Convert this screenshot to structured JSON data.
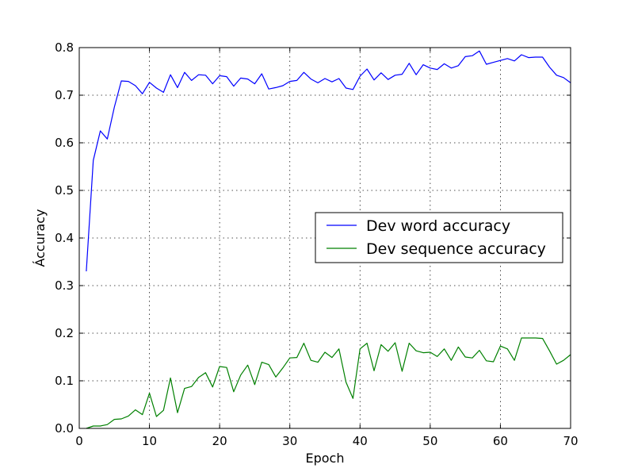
{
  "chart_data": {
    "type": "line",
    "xlabel": "Epoch",
    "ylabel": "Áccuracy",
    "xlim": [
      0,
      70
    ],
    "ylim": [
      0.0,
      0.8
    ],
    "xticks": [
      "0",
      "10",
      "20",
      "30",
      "40",
      "50",
      "60",
      "70"
    ],
    "yticks": [
      "0.0",
      "0.1",
      "0.2",
      "0.3",
      "0.4",
      "0.5",
      "0.6",
      "0.7",
      "0.8"
    ],
    "grid": true,
    "legend_position": "center-right",
    "series": [
      {
        "name": "Dev word accuracy",
        "color": "#0000ff",
        "x": [
          1,
          2,
          3,
          4,
          5,
          6,
          7,
          8,
          9,
          10,
          11,
          12,
          13,
          14,
          15,
          16,
          17,
          18,
          19,
          20,
          21,
          22,
          23,
          24,
          25,
          26,
          27,
          28,
          29,
          30,
          31,
          32,
          33,
          34,
          35,
          36,
          37,
          38,
          39,
          40,
          41,
          42,
          43,
          44,
          45,
          46,
          47,
          48,
          49,
          50,
          51,
          52,
          53,
          54,
          55,
          56,
          57,
          58,
          59,
          60,
          61,
          62,
          63,
          64,
          65,
          66,
          67,
          68,
          69,
          70
        ],
        "values": [
          0.33,
          0.563,
          0.625,
          0.608,
          0.675,
          0.73,
          0.729,
          0.72,
          0.703,
          0.727,
          0.715,
          0.706,
          0.743,
          0.716,
          0.748,
          0.731,
          0.743,
          0.742,
          0.724,
          0.741,
          0.739,
          0.719,
          0.736,
          0.734,
          0.724,
          0.745,
          0.713,
          0.716,
          0.72,
          0.729,
          0.731,
          0.748,
          0.734,
          0.726,
          0.735,
          0.728,
          0.735,
          0.715,
          0.712,
          0.74,
          0.755,
          0.732,
          0.747,
          0.733,
          0.742,
          0.744,
          0.767,
          0.743,
          0.764,
          0.757,
          0.754,
          0.766,
          0.757,
          0.762,
          0.781,
          0.783,
          0.793,
          0.765,
          0.769,
          0.773,
          0.777,
          0.772,
          0.785,
          0.779,
          0.78,
          0.78,
          0.759,
          0.742,
          0.737,
          0.726
        ]
      },
      {
        "name": "Dev sequence accuracy",
        "color": "#008000",
        "x": [
          1,
          2,
          3,
          4,
          5,
          6,
          7,
          8,
          9,
          10,
          11,
          12,
          13,
          14,
          15,
          16,
          17,
          18,
          19,
          20,
          21,
          22,
          23,
          24,
          25,
          26,
          27,
          28,
          29,
          30,
          31,
          32,
          33,
          34,
          35,
          36,
          37,
          38,
          39,
          40,
          41,
          42,
          43,
          44,
          45,
          46,
          47,
          48,
          49,
          50,
          51,
          52,
          53,
          54,
          55,
          56,
          57,
          58,
          59,
          60,
          61,
          62,
          63,
          64,
          65,
          66,
          67,
          68,
          69,
          70
        ],
        "values": [
          0.0,
          0.005,
          0.005,
          0.008,
          0.019,
          0.02,
          0.026,
          0.039,
          0.029,
          0.074,
          0.025,
          0.038,
          0.106,
          0.033,
          0.084,
          0.088,
          0.107,
          0.117,
          0.087,
          0.13,
          0.128,
          0.077,
          0.112,
          0.133,
          0.092,
          0.139,
          0.134,
          0.108,
          0.127,
          0.148,
          0.149,
          0.179,
          0.143,
          0.139,
          0.16,
          0.149,
          0.167,
          0.097,
          0.063,
          0.167,
          0.179,
          0.121,
          0.176,
          0.162,
          0.18,
          0.12,
          0.179,
          0.163,
          0.159,
          0.16,
          0.151,
          0.167,
          0.143,
          0.171,
          0.15,
          0.148,
          0.164,
          0.142,
          0.14,
          0.173,
          0.167,
          0.143,
          0.19,
          0.19,
          0.19,
          0.189,
          0.163,
          0.135,
          0.143,
          0.155
        ]
      }
    ]
  }
}
